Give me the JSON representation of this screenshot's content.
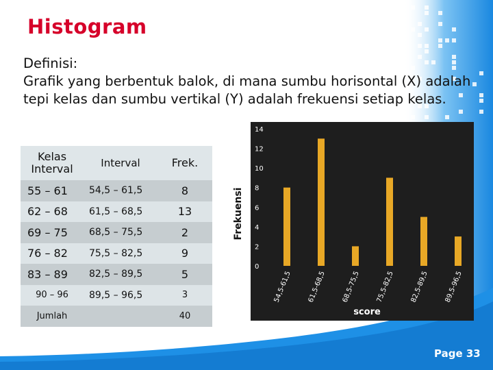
{
  "slide": {
    "title": "Histogram",
    "definition_heading": "Definisi:",
    "definition_body": "Grafik yang berbentuk balok, di mana sumbu horisontal (X) adalah tepi kelas dan sumbu vertikal (Y) adalah frekuensi setiap kelas.",
    "page_label": "Page 33"
  },
  "table": {
    "headers": {
      "kelas": "Kelas Interval",
      "interval": "Interval",
      "frek": "Frek."
    },
    "rows": [
      {
        "kelas": "55 – 61",
        "interval": "54,5 – 61,5",
        "frek": "8"
      },
      {
        "kelas": "62 – 68",
        "interval": "61,5 – 68,5",
        "frek": "13"
      },
      {
        "kelas": "69 – 75",
        "interval": "68,5 – 75,5",
        "frek": "2"
      },
      {
        "kelas": "76 – 82",
        "interval": "75,5 – 82,5",
        "frek": "9"
      },
      {
        "kelas": "83 – 89",
        "interval": "82,5 – 89,5",
        "frek": "5"
      },
      {
        "kelas": "90 – 96",
        "interval": "89,5 – 96,5",
        "frek": "3"
      }
    ],
    "total_label": "Jumlah",
    "total_value": "40"
  },
  "colors": {
    "title": "#d6002a",
    "chart_bg": "#1e1e1e",
    "bar": "#e8a826",
    "slide_blue": "#1e90e6"
  },
  "chart_data": {
    "type": "bar",
    "categories": [
      "54,5-61,5",
      "61,5-68,5",
      "68,5-75,5",
      "75,5-82,5",
      "82,5-89,5",
      "89,5-96,5"
    ],
    "values": [
      8,
      13,
      2,
      9,
      5,
      3
    ],
    "ylabel": "Frekuensi",
    "xlabel": "score",
    "ylim": [
      0,
      14
    ],
    "yticks": [
      0,
      2,
      4,
      6,
      8,
      10,
      12,
      14
    ],
    "grid": false,
    "legend": "none"
  }
}
